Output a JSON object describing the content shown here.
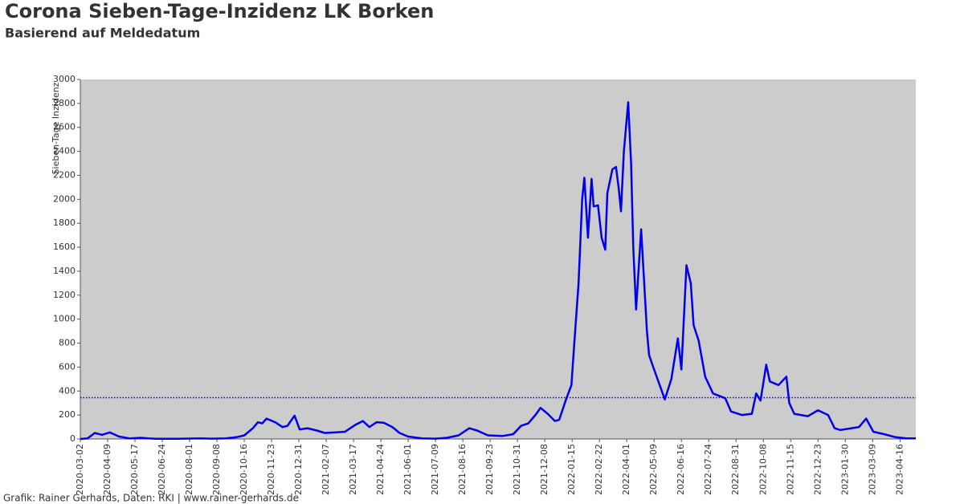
{
  "chart_data": {
    "type": "line",
    "title": "Corona Sieben-Tage-Inzidenz LK Borken",
    "subtitle": "Basierend auf Meldedatum",
    "y_label": "Sieben-Tage Inzidenz",
    "footer": "Grafik: Rainer Gerhards, Daten: RKI | www.rainer-gerhards.de",
    "xlim": [
      "2020-03-02",
      "2023-05-08"
    ],
    "xticks": [
      "2020-03-02",
      "2020-04-09",
      "2020-05-17",
      "2020-06-24",
      "2020-08-01",
      "2020-09-08",
      "2020-10-16",
      "2020-11-23",
      "2020-12-31",
      "2021-02-07",
      "2021-03-17",
      "2021-04-24",
      "2021-06-01",
      "2021-07-09",
      "2021-08-16",
      "2021-09-23",
      "2021-10-31",
      "2021-12-08",
      "2022-01-15",
      "2022-02-22",
      "2022-04-01",
      "2022-05-09",
      "2022-06-16",
      "2022-07-24",
      "2022-08-31",
      "2022-10-08",
      "2022-11-15",
      "2022-12-23",
      "2023-01-30",
      "2023-03-09",
      "2023-04-16"
    ],
    "ylim": [
      0,
      3000
    ],
    "yticks": [
      0,
      200,
      400,
      600,
      800,
      1000,
      1200,
      1400,
      1600,
      1800,
      2000,
      2200,
      2400,
      2600,
      2800,
      3000
    ],
    "reference_line": 345,
    "reference_color": "#0000ee",
    "background": "#cccccc",
    "series": [
      {
        "name": "Sieben-Tage Inzidenz",
        "color": "#0000ee",
        "x": [
          "2020-03-02",
          "2020-03-12",
          "2020-03-22",
          "2020-04-01",
          "2020-04-12",
          "2020-04-25",
          "2020-05-10",
          "2020-05-25",
          "2020-06-05",
          "2020-06-15",
          "2020-07-15",
          "2020-08-15",
          "2020-09-01",
          "2020-09-20",
          "2020-10-05",
          "2020-10-16",
          "2020-10-28",
          "2020-11-04",
          "2020-11-10",
          "2020-11-16",
          "2020-11-28",
          "2020-12-08",
          "2020-12-15",
          "2020-12-25",
          "2021-01-01",
          "2021-01-12",
          "2021-01-25",
          "2021-02-05",
          "2021-02-20",
          "2021-03-05",
          "2021-03-20",
          "2021-03-30",
          "2021-04-08",
          "2021-04-18",
          "2021-04-28",
          "2021-05-10",
          "2021-05-20",
          "2021-06-01",
          "2021-06-20",
          "2021-07-09",
          "2021-07-25",
          "2021-08-10",
          "2021-08-25",
          "2021-09-05",
          "2021-09-20",
          "2021-10-10",
          "2021-10-25",
          "2021-11-05",
          "2021-11-15",
          "2021-11-25",
          "2021-12-02",
          "2021-12-12",
          "2021-12-22",
          "2021-12-28",
          "2022-01-06",
          "2022-01-14",
          "2022-01-18",
          "2022-01-24",
          "2022-01-29",
          "2022-02-01",
          "2022-02-06",
          "2022-02-11",
          "2022-02-14",
          "2022-02-20",
          "2022-02-25",
          "2022-03-02",
          "2022-03-05",
          "2022-03-12",
          "2022-03-17",
          "2022-03-21",
          "2022-03-24",
          "2022-03-28",
          "2022-04-03",
          "2022-04-07",
          "2022-04-10",
          "2022-04-14",
          "2022-04-21",
          "2022-04-29",
          "2022-05-02",
          "2022-05-09",
          "2022-05-24",
          "2022-06-02",
          "2022-06-11",
          "2022-06-16",
          "2022-06-23",
          "2022-06-29",
          "2022-07-03",
          "2022-07-10",
          "2022-07-19",
          "2022-07-30",
          "2022-08-16",
          "2022-08-24",
          "2022-09-08",
          "2022-09-22",
          "2022-09-28",
          "2022-10-04",
          "2022-10-12",
          "2022-10-17",
          "2022-10-29",
          "2022-11-09",
          "2022-11-13",
          "2022-11-20",
          "2022-12-09",
          "2022-12-23",
          "2023-01-06",
          "2023-01-15",
          "2023-01-23",
          "2023-02-18",
          "2023-02-28",
          "2023-03-10",
          "2023-03-25",
          "2023-04-10",
          "2023-04-25",
          "2023-05-08"
        ],
        "values": [
          0,
          5,
          50,
          35,
          55,
          20,
          5,
          10,
          5,
          2,
          2,
          5,
          3,
          5,
          15,
          30,
          90,
          140,
          130,
          170,
          140,
          100,
          110,
          195,
          80,
          90,
          70,
          50,
          55,
          60,
          120,
          150,
          100,
          140,
          135,
          100,
          50,
          20,
          5,
          3,
          10,
          30,
          90,
          70,
          30,
          25,
          40,
          110,
          130,
          200,
          260,
          210,
          150,
          160,
          320,
          450,
          800,
          1300,
          2000,
          2180,
          1680,
          2170,
          1940,
          1950,
          1680,
          1580,
          2050,
          2250,
          2270,
          2080,
          1900,
          2400,
          2810,
          2300,
          1600,
          1080,
          1750,
          900,
          700,
          580,
          330,
          500,
          840,
          580,
          1450,
          1300,
          950,
          820,
          520,
          380,
          340,
          230,
          200,
          210,
          380,
          320,
          620,
          480,
          450,
          520,
          300,
          210,
          190,
          240,
          200,
          90,
          75,
          100,
          170,
          60,
          40,
          15,
          5,
          5
        ]
      }
    ]
  }
}
